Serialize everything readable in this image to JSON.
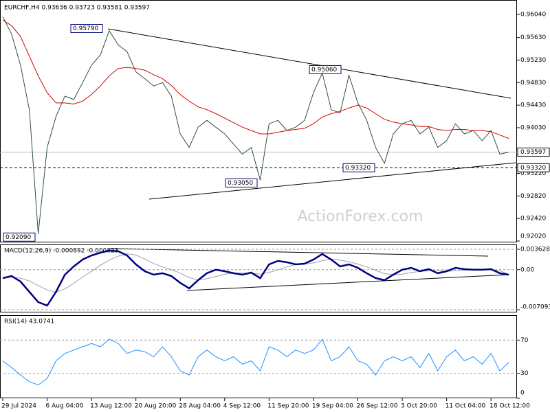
{
  "chart_data": [
    {
      "type": "line",
      "title": "EURCHF,H4  0.93636 0.93723 0.93581 0.93597",
      "watermark": "ActionForex.com",
      "ylim": [
        0.92008,
        0.96271
      ],
      "yticks": [
        {
          "value": 0.9604,
          "label": "0.96040"
        },
        {
          "value": 0.9563,
          "label": "0.95630"
        },
        {
          "value": 0.9523,
          "label": "0.95230"
        },
        {
          "value": 0.9483,
          "label": "0.94830"
        },
        {
          "value": 0.9443,
          "label": "0.94430"
        },
        {
          "value": 0.9403,
          "label": "0.94030"
        },
        {
          "value": 0.9322,
          "label": "0.93220"
        },
        {
          "value": 0.9282,
          "label": "0.92820"
        },
        {
          "value": 0.9242,
          "label": "0.92420"
        },
        {
          "value": 0.9202,
          "label": "0.92020"
        }
      ],
      "grid": false,
      "price_labels": [
        {
          "value": 0.93597,
          "label": "0.93597"
        },
        {
          "value": 0.9332,
          "label": "0.93320"
        }
      ],
      "annotations": [
        {
          "value": 0.9579,
          "label": "0.95790"
        },
        {
          "value": 0.9506,
          "label": "0.95060"
        },
        {
          "value": 0.9305,
          "label": "0.93050"
        },
        {
          "value": 0.9332,
          "label": "0.93320"
        },
        {
          "value": 0.9209,
          "label": "0.92090"
        }
      ],
      "series": [
        {
          "color": "#2f4f3f",
          "values": [
            0.96,
            0.9569,
            0.9514,
            0.9435,
            0.9215,
            0.9368,
            0.9423,
            0.9459,
            0.9453,
            0.9483,
            0.9514,
            0.9532,
            0.9575,
            0.955,
            0.9538,
            0.9502,
            0.949,
            0.9477,
            0.9483,
            0.9459,
            0.9392,
            0.9368,
            0.9404,
            0.9416,
            0.9404,
            0.9392,
            0.9374,
            0.9356,
            0.9368,
            0.931,
            0.941,
            0.9416,
            0.9398,
            0.9404,
            0.9416,
            0.9465,
            0.95,
            0.9435,
            0.9429,
            0.9496,
            0.9447,
            0.9416,
            0.9368,
            0.934,
            0.9392,
            0.941,
            0.9416,
            0.9392,
            0.9404,
            0.9368,
            0.938,
            0.941,
            0.9392,
            0.9398,
            0.938,
            0.9398,
            0.9356,
            0.93597
          ]
        },
        {
          "color": "#d40000",
          "values": [
            0.9594,
            0.9584,
            0.9565,
            0.953,
            0.9495,
            0.9465,
            0.9447,
            0.9447,
            0.9445,
            0.945,
            0.9462,
            0.9477,
            0.9495,
            0.9508,
            0.951,
            0.9508,
            0.9505,
            0.9497,
            0.949,
            0.9478,
            0.9462,
            0.945,
            0.944,
            0.9435,
            0.9428,
            0.942,
            0.9412,
            0.9404,
            0.9398,
            0.9392,
            0.9392,
            0.9395,
            0.9398,
            0.94,
            0.9402,
            0.941,
            0.9422,
            0.9428,
            0.9432,
            0.9438,
            0.9443,
            0.9438,
            0.9428,
            0.9418,
            0.9413,
            0.941,
            0.9408,
            0.9405,
            0.9405,
            0.94,
            0.9398,
            0.94,
            0.94,
            0.9398,
            0.9398,
            0.9396,
            0.939,
            0.9384
          ]
        }
      ]
    },
    {
      "type": "line",
      "title": "MACD(12,26,9) -0.000892 -0.000823",
      "ylim": [
        -0.00758,
        0.00448
      ],
      "yticks": [
        {
          "value": 0.003628,
          "label": "0.003628"
        },
        {
          "value": 0,
          "label": "0.00"
        },
        {
          "value": -0.007093,
          "label": "-0.007093"
        }
      ],
      "grid": true,
      "series": [
        {
          "color": "#a0a0a0",
          "values": [
            -0.0014,
            -0.0013,
            -0.0015,
            -0.002,
            -0.0028,
            -0.0036,
            -0.004,
            -0.0034,
            -0.0024,
            -0.0013,
            -0.0003,
            0.0008,
            0.0017,
            0.0024,
            0.0028,
            0.0026,
            0.0019,
            0.0011,
            0.0005,
            0,
            -0.0006,
            -0.0014,
            -0.0018,
            -0.0016,
            -0.0012,
            -0.0008,
            -0.0006,
            -0.0006,
            -0.0006,
            -0.0008,
            -0.0005,
            0,
            0.0005,
            0.0009,
            0.001,
            0.0012,
            0.0016,
            0.0019,
            0.0017,
            0.0014,
            0.001,
            0.0005,
            -0.0001,
            -0.0007,
            -0.0009,
            -0.0008,
            -0.0005,
            -0.0003,
            -0.0002,
            -0.0002,
            -0.0003,
            -0.0002,
            -0.0001,
            0,
            0,
            0,
            -0.0002,
            -0.000823
          ]
        },
        {
          "color": "#000080",
          "values": [
            -0.0015,
            -0.00112,
            -0.0021,
            -0.00392,
            -0.00575,
            -0.00636,
            -0.00392,
            -0.00088,
            0.00058,
            0.0018,
            0.00253,
            0.00302,
            0.00339,
            0.00327,
            0.00253,
            0.00095,
            -0.00027,
            -0.00088,
            -0.00063,
            -0.00112,
            -0.00234,
            -0.00331,
            -0.00185,
            -0.00063,
            0,
            -0.00027,
            -0.00063,
            -0.00088,
            -0.00051,
            -0.00149,
            0.00095,
            0.00156,
            0.00132,
            0.00095,
            0.00107,
            0.0018,
            0.00278,
            0.0018,
            0.00058,
            0.00095,
            0.00034,
            -0.00063,
            -0.00149,
            -0.00185,
            -0.00088,
            0,
            0.00034,
            -0.00027,
            0.0001,
            -0.00063,
            -0.00027,
            0.00034,
            0.0001,
            0,
            0,
            0.0001,
            -0.00063,
            -0.000892
          ]
        }
      ]
    },
    {
      "type": "line",
      "title": "RSI(14) 43.0741",
      "ylim": [
        0,
        100
      ],
      "yticks": [
        70,
        30,
        0
      ],
      "grid": true,
      "categories": [
        "29 Jul 2024",
        null,
        null,
        null,
        null,
        "6 Aug 04:00",
        null,
        null,
        null,
        null,
        "13 Aug 12:00",
        null,
        null,
        null,
        null,
        "20 Aug 20:00",
        null,
        null,
        null,
        null,
        "28 Aug 04:00",
        null,
        null,
        null,
        null,
        "4 Sep 12:00",
        null,
        null,
        null,
        null,
        "11 Sep 20:00",
        null,
        null,
        null,
        null,
        "19 Sep 04:00",
        null,
        null,
        null,
        null,
        "26 Sep 12:00",
        null,
        null,
        null,
        null,
        "3 Oct 20:00",
        null,
        null,
        null,
        null,
        "11 Oct 04:00",
        null,
        null,
        null,
        null,
        "18 Oct 12:00",
        null,
        null
      ],
      "series": [
        {
          "color": "#1e90ff",
          "values": [
            45,
            37,
            28,
            20,
            16,
            24,
            45,
            54,
            58,
            62,
            66,
            62,
            71,
            66,
            54,
            58,
            56,
            50,
            62,
            50,
            33,
            28,
            50,
            58,
            50,
            45,
            50,
            41,
            45,
            33,
            62,
            58,
            50,
            58,
            54,
            58,
            71,
            45,
            50,
            62,
            45,
            41,
            28,
            45,
            50,
            45,
            50,
            37,
            54,
            33,
            50,
            58,
            45,
            50,
            41,
            54,
            33,
            43.0741
          ]
        }
      ]
    }
  ]
}
